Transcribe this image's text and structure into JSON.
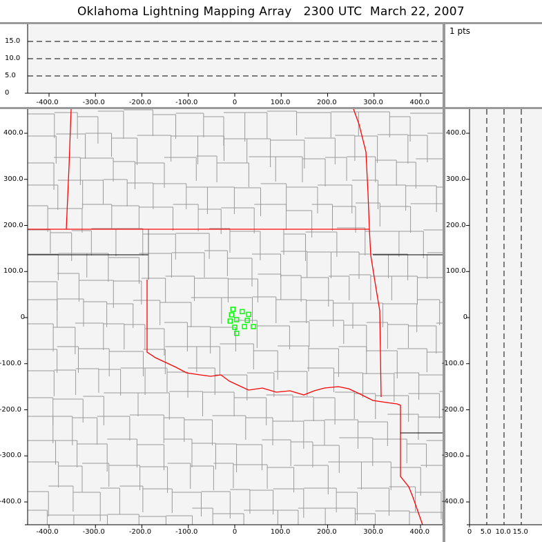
{
  "title": "Oklahoma Lightning Mapping Array   2300 UTC  March 22, 2007",
  "point_count_label": "1 pts",
  "colors": {
    "state_border": "#ff0000",
    "county_border": "#999999",
    "source_marker": "#00ff00",
    "plot_bg": "#f4f4f4"
  },
  "chart_data": [
    {
      "type": "scatter",
      "panel": "plan-view",
      "xlim": [
        -445,
        445
      ],
      "ylim": [
        -445,
        445
      ],
      "x_ticks": [
        "-400.0",
        "-300.0",
        "-200.0",
        "-100.0",
        "0",
        "100.0",
        "200.0",
        "300.0",
        "400.0"
      ],
      "y_ticks": [
        "400.0",
        "300.0",
        "200.0",
        "100.0",
        "0",
        "-100.0",
        "-200.0",
        "-300.0",
        "-400.0"
      ],
      "points": [
        [
          -4,
          18
        ],
        [
          16,
          13
        ],
        [
          30,
          7
        ],
        [
          -7,
          6
        ],
        [
          4,
          -4.5
        ],
        [
          27,
          -6
        ],
        [
          -10,
          -7.5
        ],
        [
          0,
          -21
        ],
        [
          21,
          -19.5
        ],
        [
          40,
          -19.5
        ],
        [
          4,
          -34
        ]
      ]
    },
    {
      "type": "scatter",
      "panel": "east-west-altitude",
      "xlim": [
        -445,
        445
      ],
      "ylim": [
        0,
        20
      ],
      "x_ticks": [
        "-400.0",
        "-300.0",
        "-200.0",
        "-100.0",
        "0",
        "100.0",
        "200.0",
        "300.0",
        "400.0"
      ],
      "y_ticks": [
        "15.0",
        "10.0",
        "5.0",
        "0"
      ],
      "reference_lines": [
        5,
        10,
        15
      ],
      "points": []
    },
    {
      "type": "scatter",
      "panel": "altitude-north-south",
      "xlim": [
        0,
        20
      ],
      "ylim": [
        -445,
        445
      ],
      "x_ticks": [
        "0",
        "5.0",
        "10.0",
        "15.0"
      ],
      "y_ticks": [
        "400.0",
        "300.0",
        "200.0",
        "100.0",
        "0",
        "-100.0",
        "-200.0",
        "-300.0",
        "-400.0"
      ],
      "reference_lines": [
        5,
        10,
        15
      ],
      "points": []
    }
  ]
}
